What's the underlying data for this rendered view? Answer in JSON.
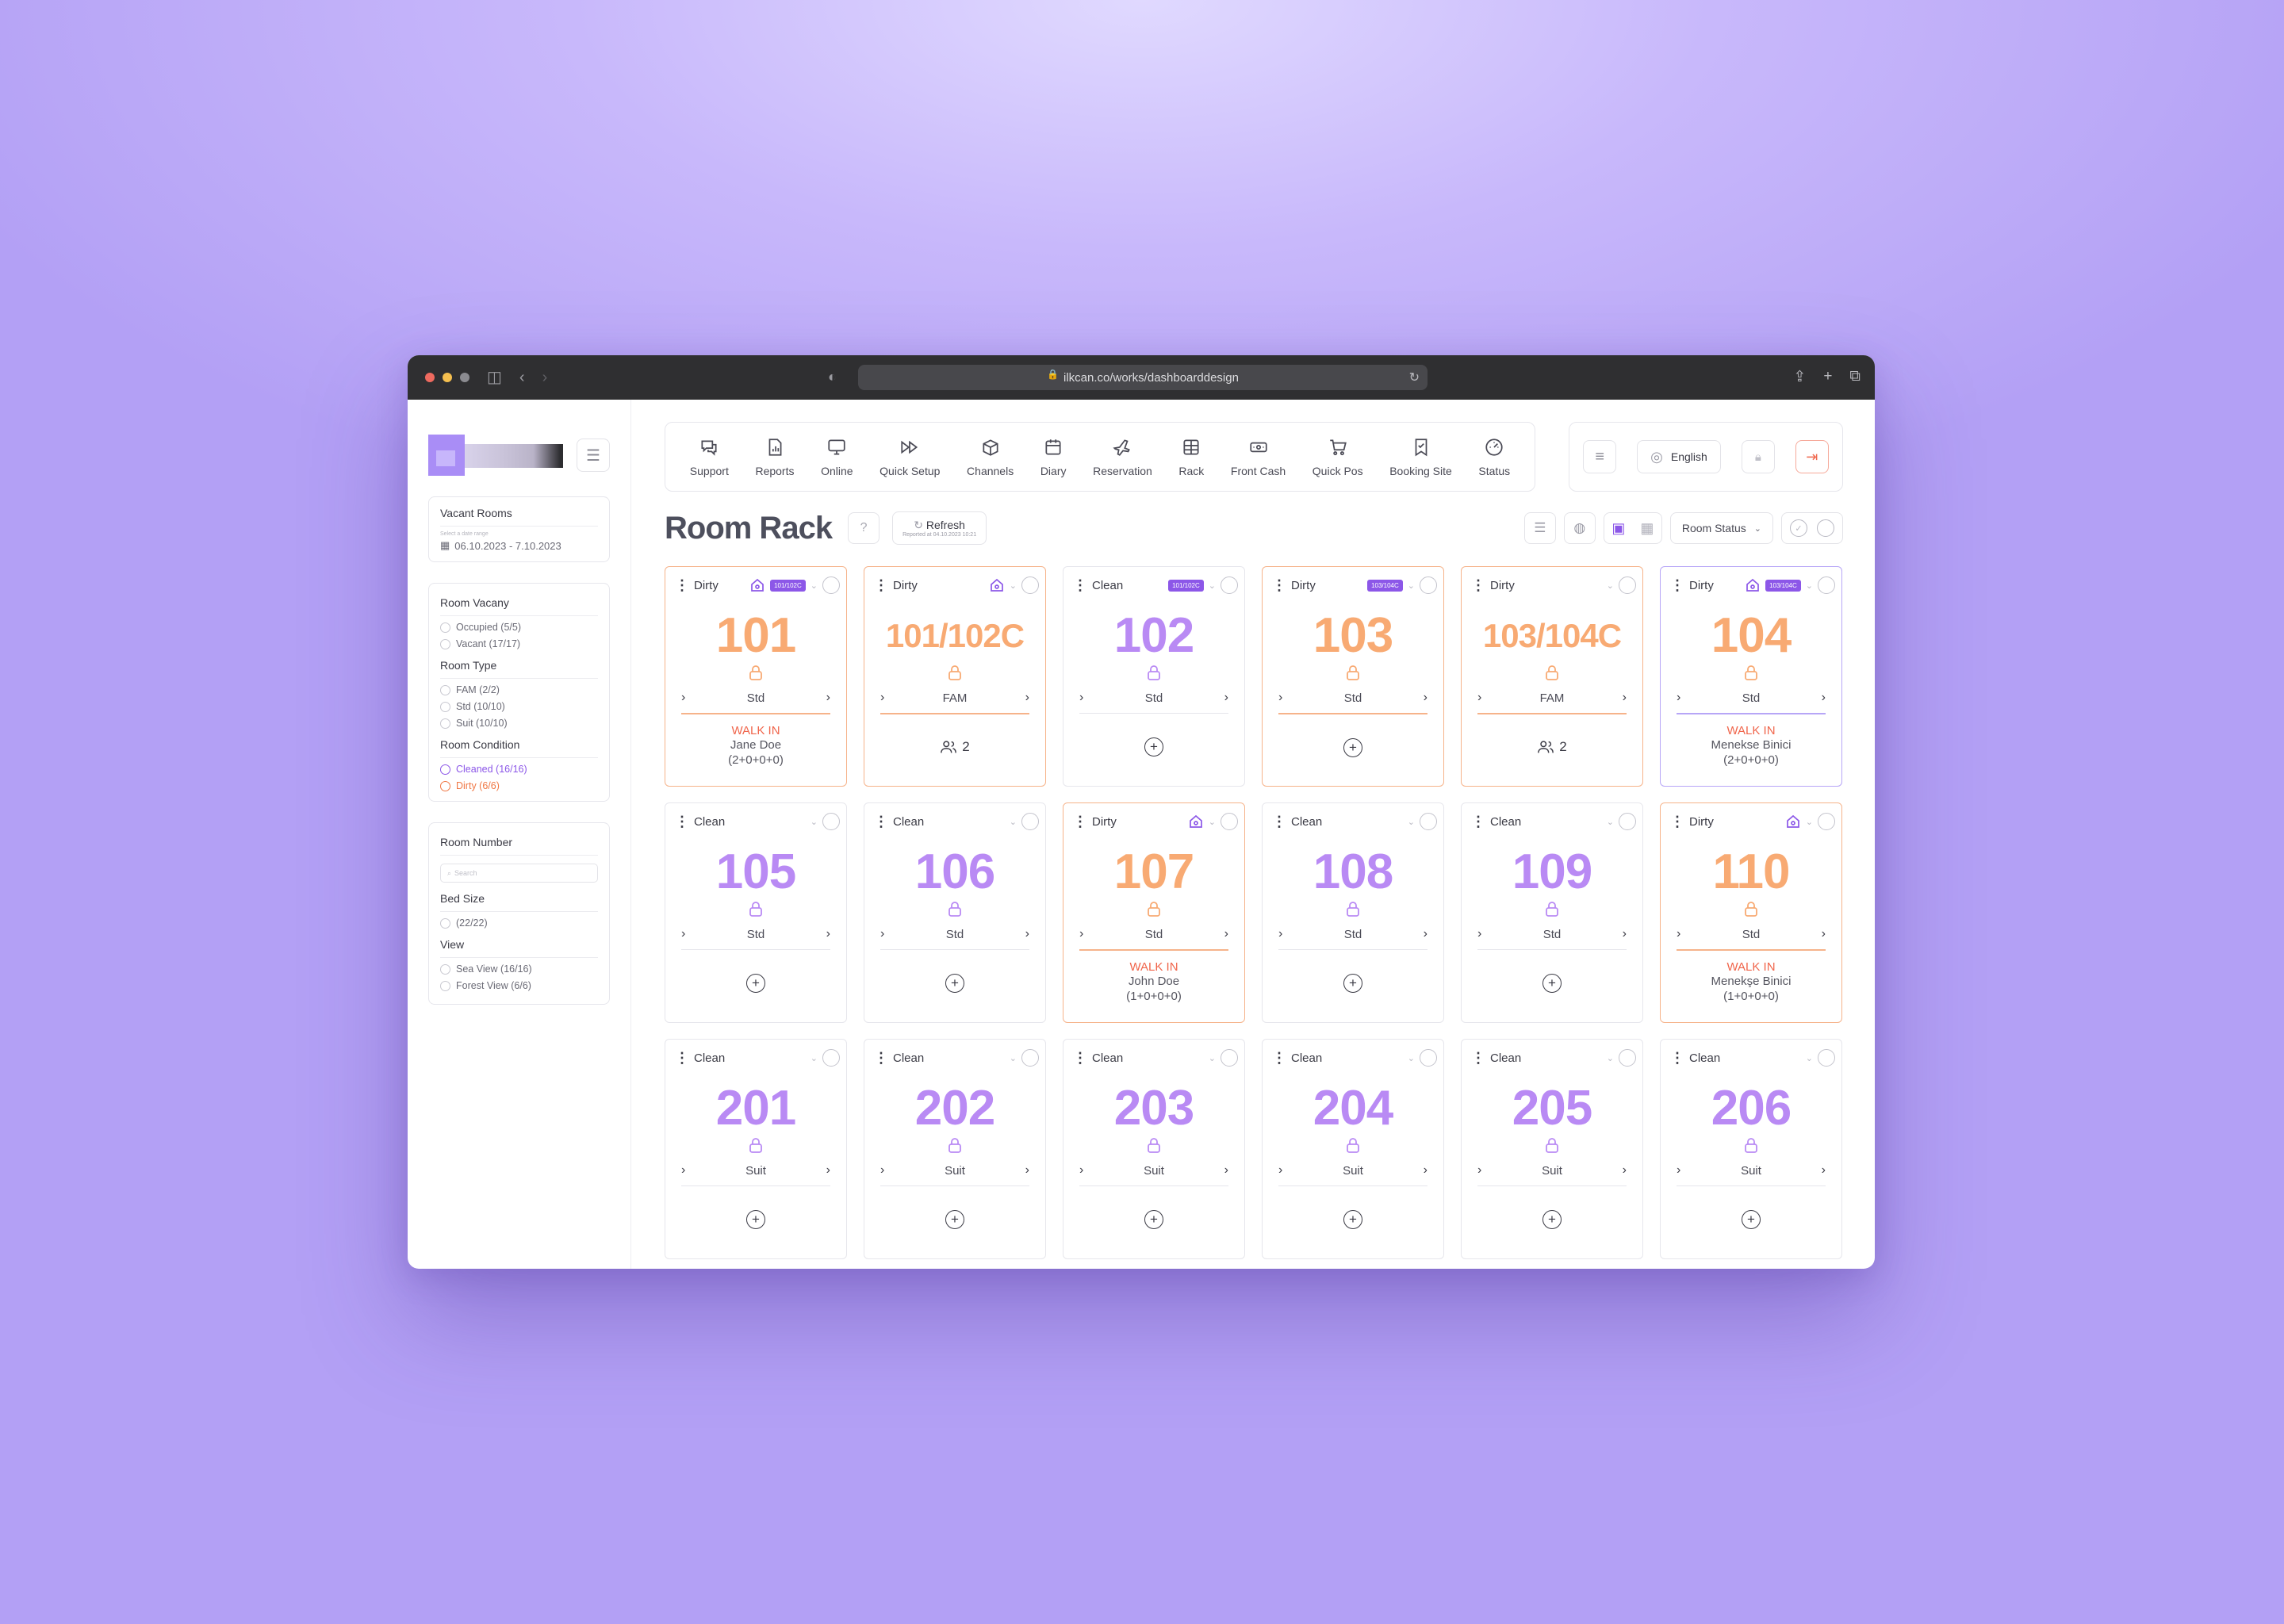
{
  "browser": {
    "url": "ilkcan.co/works/dashboarddesign"
  },
  "sidebar": {
    "vacant": {
      "title": "Vacant Rooms",
      "mini_label": "Select a date range",
      "date_range": "06.10.2023 - 7.10.2023"
    },
    "filters": {
      "vacancy_title": "Room Vacany",
      "vacancy": [
        "Occupied (5/5)",
        "Vacant (17/17)"
      ],
      "type_title": "Room Type",
      "types": [
        "FAM (2/2)",
        "Std (10/10)",
        "Suit (10/10)"
      ],
      "condition_title": "Room Condition",
      "conditions": [
        "Cleaned (16/16)",
        "Dirty (6/6)"
      ]
    },
    "more": {
      "number_title": "Room Number",
      "search_placeholder": "Search",
      "bed_title": "Bed Size",
      "beds": [
        "(22/22)"
      ],
      "view_title": "View",
      "views": [
        "Sea View (16/16)",
        "Forest View (6/6)"
      ]
    }
  },
  "toolbar": {
    "items": [
      {
        "label": "Support",
        "icon": "support-icon"
      },
      {
        "label": "Reports",
        "icon": "reports-icon"
      },
      {
        "label": "Online",
        "icon": "monitor-icon"
      },
      {
        "label": "Quick Setup",
        "icon": "fast-forward-icon"
      },
      {
        "label": "Channels",
        "icon": "cube-icon"
      },
      {
        "label": "Diary",
        "icon": "calendar-icon"
      },
      {
        "label": "Reservation",
        "icon": "plane-icon"
      },
      {
        "label": "Rack",
        "icon": "grid-icon"
      },
      {
        "label": "Front Cash",
        "icon": "cash-icon"
      },
      {
        "label": "Quick Pos",
        "icon": "cart-icon"
      },
      {
        "label": "Booking Site",
        "icon": "bookmark-icon"
      },
      {
        "label": "Status",
        "icon": "gauge-icon"
      }
    ],
    "language": "English"
  },
  "header": {
    "title": "Room Rack",
    "refresh_label": "Refresh",
    "refresh_sub": "Reported at 04.10.2023 10:21",
    "status_select": "Room Status"
  },
  "colors": {
    "purple": "#8c57e8",
    "orange": "#f8aa73",
    "red": "#f0654b"
  },
  "rooms": [
    {
      "status": "Dirty",
      "number": "101",
      "type": "Std",
      "house": true,
      "tag": "101/102C",
      "walk": "WALK IN",
      "guest": "Jane Doe",
      "pax": "(2+0+0+0)"
    },
    {
      "status": "Dirty",
      "number": "101/102C",
      "type": "FAM",
      "house": true,
      "count": "2"
    },
    {
      "status": "Clean",
      "number": "102",
      "type": "Std",
      "tag": "101/102C"
    },
    {
      "status": "Dirty",
      "number": "103",
      "type": "Std",
      "tag": "103/104C"
    },
    {
      "status": "Dirty",
      "number": "103/104C",
      "type": "FAM",
      "count": "2"
    },
    {
      "status": "Dirty",
      "number": "104",
      "type": "Std",
      "house": true,
      "tag": "103/104C",
      "walk": "WALK IN",
      "guest": "Menekse Binici",
      "pax": "(2+0+0+0)"
    },
    {
      "status": "Clean",
      "number": "105",
      "type": "Std"
    },
    {
      "status": "Clean",
      "number": "106",
      "type": "Std"
    },
    {
      "status": "Dirty",
      "number": "107",
      "type": "Std",
      "house": true,
      "walk": "WALK IN",
      "guest": "John Doe",
      "pax": "(1+0+0+0)"
    },
    {
      "status": "Clean",
      "number": "108",
      "type": "Std"
    },
    {
      "status": "Clean",
      "number": "109",
      "type": "Std"
    },
    {
      "status": "Dirty",
      "number": "110",
      "type": "Std",
      "house": true,
      "walk": "WALK IN",
      "guest": "Menekşe Binici",
      "pax": "(1+0+0+0)"
    },
    {
      "status": "Clean",
      "number": "201",
      "type": "Suit"
    },
    {
      "status": "Clean",
      "number": "202",
      "type": "Suit"
    },
    {
      "status": "Clean",
      "number": "203",
      "type": "Suit"
    },
    {
      "status": "Clean",
      "number": "204",
      "type": "Suit"
    },
    {
      "status": "Clean",
      "number": "205",
      "type": "Suit"
    },
    {
      "status": "Clean",
      "number": "206",
      "type": "Suit"
    }
  ]
}
